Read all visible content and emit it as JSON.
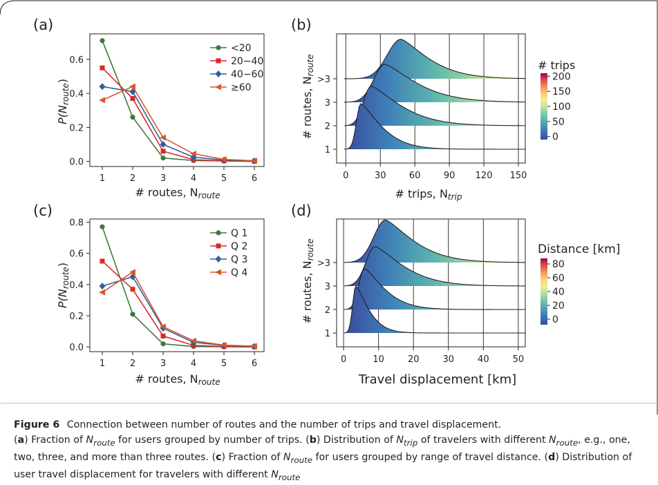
{
  "panels": {
    "a": {
      "label": "(a)",
      "ylabel": "P(N",
      "ylabel_sub": "route",
      "ylabel_end": ")",
      "xlabel": "# routes, N",
      "xlabel_sub": "route",
      "legend": [
        "<20",
        "20−40",
        "40−60",
        "≥60"
      ]
    },
    "b": {
      "label": "(b)",
      "ylabel": "# routes, N",
      "ylabel_sub": "route",
      "xlabel": "# trips, N",
      "xlabel_sub": "trip",
      "yticks": [
        "1",
        "2",
        "3",
        ">3"
      ],
      "xticks": [
        "0",
        "30",
        "60",
        "90",
        "120",
        "150"
      ],
      "colorbar_title": "# trips",
      "colorbar_ticks": [
        "200",
        "150",
        "100",
        "50",
        "0"
      ]
    },
    "c": {
      "label": "(c)",
      "ylabel": "P(N",
      "ylabel_sub": "route",
      "ylabel_end": ")",
      "xlabel": "# routes, N",
      "xlabel_sub": "route",
      "legend": [
        "Q 1",
        "Q 2",
        "Q 3",
        "Q 4"
      ]
    },
    "d": {
      "label": "(d)",
      "ylabel": "# routes, N",
      "ylabel_sub": "route",
      "xlabel": "Travel displacement [km]",
      "yticks": [
        "1",
        "2",
        "3",
        ">3"
      ],
      "xticks": [
        "0",
        "10",
        "20",
        "30",
        "40",
        "50"
      ],
      "colorbar_title": "Distance [km]",
      "colorbar_ticks": [
        "80",
        "60",
        "40",
        "20",
        "0"
      ]
    }
  },
  "caption": {
    "label": "Figure 6",
    "title": "Connection between number of routes and the number of trips and travel displacement.",
    "a": "a",
    "a_pre": ") Fraction of ",
    "a_post": " for users grouped by number of trips. (",
    "b": "b",
    "b_pre": ") Distribution of ",
    "b_mid": " of travelers with different ",
    "b_post": ", e.g., one, two, three, and more than three routes. (",
    "c": "c",
    "c_pre": ") Fraction of ",
    "c_post": " for users grouped by range of travel distance. (",
    "d": "d",
    "d_pre": ") Distribution of user travel displacement for travelers with different ",
    "N": "N",
    "route": "route",
    "trip": "trip"
  },
  "colors": {
    "green": "#3d7a3c",
    "red": "#d62a2a",
    "blue": "#2f5f9e",
    "orange": "#d9572b"
  },
  "chart_data": [
    {
      "panel": "a",
      "type": "line",
      "x": [
        1,
        2,
        3,
        4,
        5,
        6
      ],
      "ylim": [
        -0.03,
        0.75
      ],
      "yticks": [
        0.0,
        0.2,
        0.4,
        0.6
      ],
      "series": [
        {
          "name": "<20",
          "color": "#3d7a3c",
          "marker": "circle",
          "values": [
            0.71,
            0.26,
            0.02,
            0.005,
            0.002,
            0.0
          ]
        },
        {
          "name": "20−40",
          "color": "#d62a2a",
          "marker": "square",
          "values": [
            0.55,
            0.37,
            0.06,
            0.01,
            0.003,
            0.001
          ]
        },
        {
          "name": "40−60",
          "color": "#2f5f9e",
          "marker": "diamond",
          "values": [
            0.44,
            0.41,
            0.1,
            0.025,
            0.008,
            0.003
          ]
        },
        {
          "name": "≥60",
          "color": "#d9572b",
          "marker": "triangle-left",
          "values": [
            0.36,
            0.44,
            0.14,
            0.045,
            0.012,
            0.004
          ]
        }
      ]
    },
    {
      "panel": "c",
      "type": "line",
      "x": [
        1,
        2,
        3,
        4,
        5,
        6
      ],
      "ylim": [
        -0.03,
        0.82
      ],
      "yticks": [
        0.0,
        0.2,
        0.4,
        0.6,
        0.8
      ],
      "series": [
        {
          "name": "Q 1",
          "color": "#3d7a3c",
          "marker": "circle",
          "values": [
            0.77,
            0.21,
            0.02,
            0.003,
            0.001,
            0.0
          ]
        },
        {
          "name": "Q 2",
          "color": "#d62a2a",
          "marker": "square",
          "values": [
            0.55,
            0.37,
            0.07,
            0.01,
            0.003,
            0.001
          ]
        },
        {
          "name": "Q 3",
          "color": "#2f5f9e",
          "marker": "diamond",
          "values": [
            0.39,
            0.45,
            0.12,
            0.03,
            0.01,
            0.004
          ]
        },
        {
          "name": "Q 4",
          "color": "#d9572b",
          "marker": "triangle-left",
          "values": [
            0.35,
            0.48,
            0.13,
            0.04,
            0.012,
            0.005
          ]
        }
      ]
    },
    {
      "panel": "b",
      "type": "area",
      "xlim": [
        -8,
        156
      ],
      "categories": [
        "1",
        "2",
        "3",
        ">3"
      ],
      "colorbar": {
        "min": -10,
        "max": 210,
        "ticks": [
          0,
          50,
          100,
          150,
          200
        ]
      },
      "series": [
        {
          "name": "1",
          "peak_x": 13,
          "peak_height": 3.0,
          "width_left": 5,
          "width_right": 22
        },
        {
          "name": "2",
          "peak_x": 22,
          "peak_height": 2.6,
          "width_left": 9,
          "width_right": 32
        },
        {
          "name": "3",
          "peak_x": 34,
          "peak_height": 2.5,
          "width_left": 13,
          "width_right": 34
        },
        {
          "name": ">3",
          "peak_x": 48,
          "peak_height": 2.6,
          "width_left": 16,
          "width_right": 30
        }
      ]
    },
    {
      "panel": "d",
      "type": "area",
      "xlim": [
        -2,
        52
      ],
      "categories": [
        "1",
        "2",
        "3",
        ">3"
      ],
      "colorbar": {
        "min": -8,
        "max": 88,
        "ticks": [
          0,
          20,
          40,
          60,
          80
        ]
      },
      "series": [
        {
          "name": "1",
          "peak_x": 3.5,
          "peak_height": 3.1,
          "width_left": 1.2,
          "width_right": 4.5
        },
        {
          "name": "2",
          "peak_x": 6,
          "peak_height": 2.7,
          "width_left": 2.2,
          "width_right": 7
        },
        {
          "name": "3",
          "peak_x": 9,
          "peak_height": 2.6,
          "width_left": 3.5,
          "width_right": 10
        },
        {
          "name": ">3",
          "peak_x": 12,
          "peak_height": 2.8,
          "width_left": 4.5,
          "width_right": 10
        }
      ]
    }
  ]
}
